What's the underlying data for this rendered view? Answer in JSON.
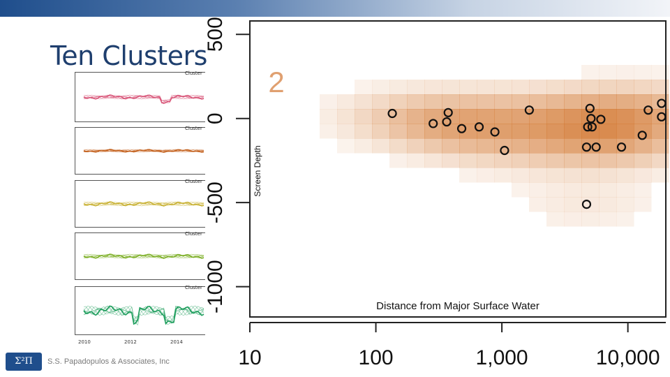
{
  "slide": {
    "title": "Ten Clusters",
    "company": "S.S. Papadopulos & Associates, Inc",
    "logo_text": "Σ²Π"
  },
  "mini_panels": {
    "label": "Cluster",
    "years": [
      "2010",
      "2012",
      "2014"
    ],
    "colors": [
      "#d9577a",
      "#c4631f",
      "#c9b236",
      "#7fb02a",
      "#1f9e5e"
    ]
  },
  "chart_data": {
    "type": "scatter",
    "panel_label": "2",
    "xlabel": "Distance from Major Surface Water",
    "ylabel": "Screen Depth",
    "x_scale": "log",
    "x_ticks": [
      10,
      100,
      1000,
      10000
    ],
    "x_tick_labels": [
      "10",
      "100",
      "1,000",
      "10,000"
    ],
    "y_ticks": [
      500,
      0,
      -500,
      -1000
    ],
    "y_tick_labels": [
      "500",
      "0",
      "-500",
      "-1000"
    ],
    "xlim": [
      10,
      20000
    ],
    "ylim": [
      -1180,
      580
    ],
    "density_color": "#d2762f",
    "points": [
      {
        "x": 135,
        "y": 30
      },
      {
        "x": 285,
        "y": -30
      },
      {
        "x": 375,
        "y": 35
      },
      {
        "x": 365,
        "y": -20
      },
      {
        "x": 480,
        "y": -60
      },
      {
        "x": 660,
        "y": -50
      },
      {
        "x": 880,
        "y": -80
      },
      {
        "x": 1050,
        "y": -190
      },
      {
        "x": 1650,
        "y": 50
      },
      {
        "x": 5000,
        "y": 60
      },
      {
        "x": 5100,
        "y": 0
      },
      {
        "x": 6100,
        "y": -5
      },
      {
        "x": 5200,
        "y": -50
      },
      {
        "x": 4800,
        "y": -50
      },
      {
        "x": 4700,
        "y": -170
      },
      {
        "x": 5600,
        "y": -170
      },
      {
        "x": 8900,
        "y": -170
      },
      {
        "x": 14500,
        "y": 50
      },
      {
        "x": 18500,
        "y": 90
      },
      {
        "x": 18500,
        "y": 10
      },
      {
        "x": 13000,
        "y": -100
      },
      {
        "x": 4700,
        "y": -510
      }
    ]
  }
}
